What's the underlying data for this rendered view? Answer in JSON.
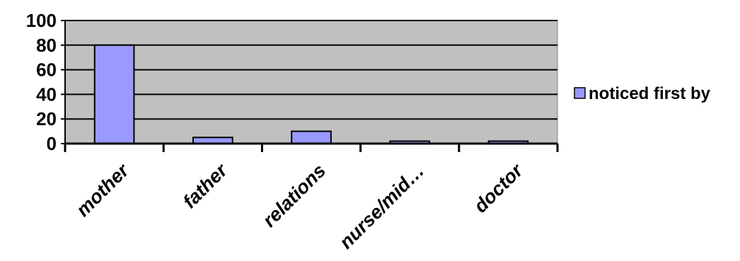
{
  "chart_data": {
    "type": "bar",
    "categories": [
      "mother",
      "father",
      "relations",
      "nurse/mid…",
      "doctor"
    ],
    "series": [
      {
        "name": "noticed first by",
        "values": [
          80,
          5,
          10,
          2,
          2
        ]
      }
    ],
    "ylim": [
      0,
      100
    ],
    "yticks": [
      0,
      20,
      40,
      60,
      80,
      100
    ],
    "ytick_labels": [
      "0",
      "20",
      "40",
      "60",
      "80",
      "100"
    ],
    "grid": true,
    "legend": "right",
    "colors": {
      "plot_bg": "#c0c0c0",
      "bar_fill": "#9999ff",
      "bar_edge": "#000000",
      "grid": "#000000"
    }
  }
}
